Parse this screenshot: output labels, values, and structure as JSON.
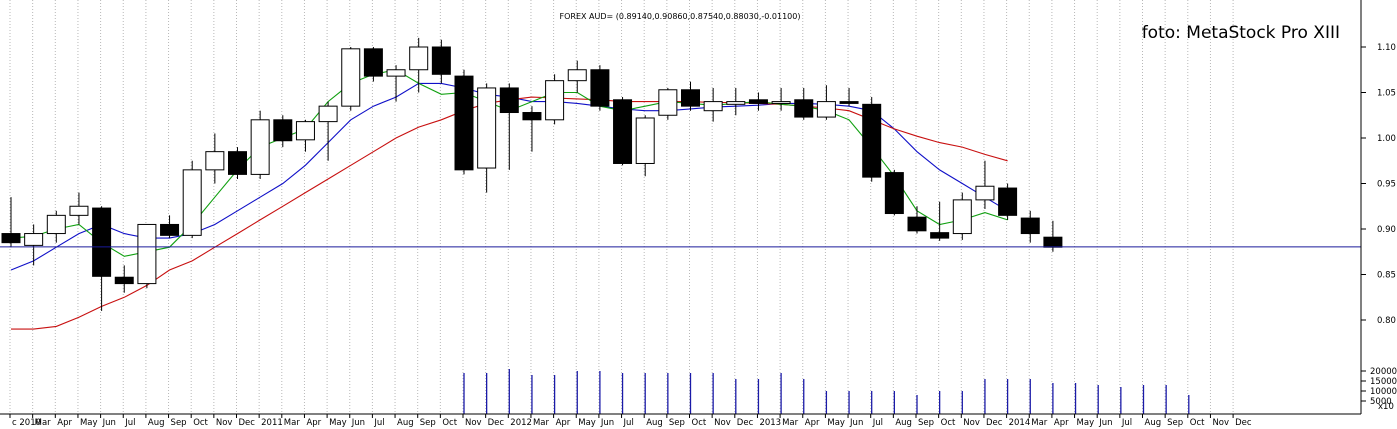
{
  "chart_data": {
    "type": "candlestick",
    "title": "FOREX AUD= (0.89140,0.90860,0.87540,0.88030,-0.01100)",
    "watermark": "foto: MetaStock Pro XIII",
    "price_axis": {
      "ticks": [
        0.8,
        0.85,
        0.9,
        0.95,
        1.0,
        1.05,
        1.1
      ],
      "labels": [
        "0.80",
        "0.85",
        "0.90",
        "0.95",
        "1.00",
        "1.05",
        "1.10"
      ],
      "ylim": [
        0.77,
        1.13
      ]
    },
    "volume_axis": {
      "ticks": [
        5000,
        10000,
        15000,
        20000
      ],
      "labels": [
        "5000",
        "10000",
        "15000",
        "20000"
      ],
      "top_label": "x10",
      "ylim": [
        0,
        22000
      ]
    },
    "x_labels": [
      "c 2010",
      "Mar",
      "Apr",
      "May",
      "Jun",
      "Jul",
      "Aug",
      "Sep",
      "Oct",
      "Nov",
      "Dec",
      "2011",
      "Mar",
      "Apr",
      "May",
      "Jun",
      "Jul",
      "Aug",
      "Sep",
      "Oct",
      "Nov",
      "Dec",
      "2012",
      "Mar",
      "Apr",
      "May",
      "Jun",
      "Jul",
      "Aug",
      "Sep",
      "Oct",
      "Nov",
      "Dec",
      "2013",
      "Mar",
      "Apr",
      "May",
      "Jun",
      "Jul",
      "Aug",
      "Sep",
      "Oct",
      "Nov",
      "Dec",
      "2014",
      "Mar",
      "Apr",
      "May",
      "Jun",
      "Jul",
      "Aug",
      "Sep",
      "Oct",
      "Nov",
      "Dec"
    ],
    "candles": [
      {
        "o": 0.895,
        "h": 0.935,
        "l": 0.88,
        "c": 0.885
      },
      {
        "o": 0.882,
        "h": 0.905,
        "l": 0.86,
        "c": 0.895
      },
      {
        "o": 0.895,
        "h": 0.92,
        "l": 0.885,
        "c": 0.915
      },
      {
        "o": 0.915,
        "h": 0.94,
        "l": 0.905,
        "c": 0.925
      },
      {
        "o": 0.923,
        "h": 0.925,
        "l": 0.81,
        "c": 0.848
      },
      {
        "o": 0.847,
        "h": 0.86,
        "l": 0.83,
        "c": 0.84
      },
      {
        "o": 0.84,
        "h": 0.905,
        "l": 0.835,
        "c": 0.905
      },
      {
        "o": 0.905,
        "h": 0.915,
        "l": 0.89,
        "c": 0.893
      },
      {
        "o": 0.893,
        "h": 0.975,
        "l": 0.89,
        "c": 0.965
      },
      {
        "o": 0.965,
        "h": 1.005,
        "l": 0.95,
        "c": 0.985
      },
      {
        "o": 0.985,
        "h": 0.99,
        "l": 0.955,
        "c": 0.96
      },
      {
        "o": 0.96,
        "h": 1.03,
        "l": 0.955,
        "c": 1.02
      },
      {
        "o": 1.02,
        "h": 1.025,
        "l": 0.99,
        "c": 0.997
      },
      {
        "o": 0.998,
        "h": 1.02,
        "l": 0.985,
        "c": 1.018
      },
      {
        "o": 1.018,
        "h": 1.04,
        "l": 0.975,
        "c": 1.035
      },
      {
        "o": 1.035,
        "h": 1.1,
        "l": 1.03,
        "c": 1.098
      },
      {
        "o": 1.098,
        "h": 1.1,
        "l": 1.062,
        "c": 1.068
      },
      {
        "o": 1.068,
        "h": 1.08,
        "l": 1.04,
        "c": 1.075
      },
      {
        "o": 1.075,
        "h": 1.11,
        "l": 1.05,
        "c": 1.1
      },
      {
        "o": 1.1,
        "h": 1.108,
        "l": 1.06,
        "c": 1.07
      },
      {
        "o": 1.068,
        "h": 1.075,
        "l": 0.96,
        "c": 0.965
      },
      {
        "o": 0.967,
        "h": 1.06,
        "l": 0.94,
        "c": 1.055
      },
      {
        "o": 1.055,
        "h": 1.06,
        "l": 0.965,
        "c": 1.028
      },
      {
        "o": 1.028,
        "h": 1.035,
        "l": 0.985,
        "c": 1.02
      },
      {
        "o": 1.02,
        "h": 1.07,
        "l": 1.015,
        "c": 1.063
      },
      {
        "o": 1.063,
        "h": 1.085,
        "l": 1.05,
        "c": 1.075
      },
      {
        "o": 1.075,
        "h": 1.08,
        "l": 1.03,
        "c": 1.035
      },
      {
        "o": 1.042,
        "h": 1.045,
        "l": 0.97,
        "c": 0.972
      },
      {
        "o": 0.972,
        "h": 1.025,
        "l": 0.958,
        "c": 1.022
      },
      {
        "o": 1.025,
        "h": 1.055,
        "l": 1.02,
        "c": 1.053
      },
      {
        "o": 1.053,
        "h": 1.062,
        "l": 1.03,
        "c": 1.035
      },
      {
        "o": 1.03,
        "h": 1.055,
        "l": 1.018,
        "c": 1.04
      },
      {
        "o": 1.037,
        "h": 1.055,
        "l": 1.025,
        "c": 1.04
      },
      {
        "o": 1.042,
        "h": 1.05,
        "l": 1.03,
        "c": 1.038
      },
      {
        "o": 1.038,
        "h": 1.055,
        "l": 1.03,
        "c": 1.04
      },
      {
        "o": 1.042,
        "h": 1.055,
        "l": 1.02,
        "c": 1.023
      },
      {
        "o": 1.023,
        "h": 1.058,
        "l": 1.02,
        "c": 1.04
      },
      {
        "o": 1.04,
        "h": 1.055,
        "l": 1.035,
        "c": 1.038
      },
      {
        "o": 1.037,
        "h": 1.045,
        "l": 0.952,
        "c": 0.957
      },
      {
        "o": 0.962,
        "h": 0.965,
        "l": 0.915,
        "c": 0.917
      },
      {
        "o": 0.913,
        "h": 0.925,
        "l": 0.895,
        "c": 0.898
      },
      {
        "o": 0.896,
        "h": 0.93,
        "l": 0.887,
        "c": 0.89
      },
      {
        "o": 0.895,
        "h": 0.94,
        "l": 0.888,
        "c": 0.932
      },
      {
        "o": 0.932,
        "h": 0.975,
        "l": 0.922,
        "c": 0.947
      },
      {
        "o": 0.945,
        "h": 0.95,
        "l": 0.91,
        "c": 0.915
      },
      {
        "o": 0.912,
        "h": 0.92,
        "l": 0.885,
        "c": 0.895
      },
      {
        "o": 0.891,
        "h": 0.909,
        "l": 0.875,
        "c": 0.88
      }
    ],
    "series": [
      {
        "color": "#1010c8",
        "values": [
          0.855,
          0.865,
          0.88,
          0.895,
          0.905,
          0.895,
          0.89,
          0.89,
          0.895,
          0.905,
          0.92,
          0.935,
          0.95,
          0.97,
          0.995,
          1.02,
          1.035,
          1.045,
          1.06,
          1.06,
          1.055,
          1.048,
          1.045,
          1.04,
          1.04,
          1.038,
          1.035,
          1.032,
          1.03,
          1.03,
          1.032,
          1.034,
          1.035,
          1.036,
          1.038,
          1.038,
          1.037,
          1.035,
          1.03,
          1.01,
          0.985,
          0.965,
          0.95,
          0.935,
          0.92
        ]
      },
      {
        "color": "#c81010",
        "values": [
          0.79,
          0.79,
          0.793,
          0.803,
          0.815,
          0.825,
          0.838,
          0.855,
          0.865,
          0.88,
          0.895,
          0.91,
          0.925,
          0.94,
          0.955,
          0.97,
          0.985,
          1.0,
          1.012,
          1.02,
          1.03,
          1.038,
          1.042,
          1.045,
          1.044,
          1.043,
          1.042,
          1.04,
          1.04,
          1.04,
          1.04,
          1.039,
          1.039,
          1.038,
          1.037,
          1.035,
          1.033,
          1.03,
          1.02,
          1.01,
          1.002,
          0.995,
          0.99,
          0.982,
          0.975
        ]
      },
      {
        "color": "#10a010",
        "values": [
          0.89,
          0.892,
          0.9,
          0.905,
          0.885,
          0.87,
          0.875,
          0.88,
          0.905,
          0.935,
          0.965,
          0.99,
          1.0,
          1.01,
          1.04,
          1.06,
          1.07,
          1.075,
          1.06,
          1.048,
          1.05,
          1.04,
          1.03,
          1.04,
          1.05,
          1.05,
          1.035,
          1.03,
          1.035,
          1.04,
          1.038,
          1.036,
          1.038,
          1.04,
          1.037,
          1.035,
          1.03,
          1.02,
          0.99,
          0.958,
          0.92,
          0.905,
          0.91,
          0.918,
          0.91
        ]
      }
    ],
    "hline": 0.8803,
    "volume": {
      "start_index": 20,
      "values": [
        19000,
        19000,
        21000,
        18000,
        18000,
        20000,
        20000,
        19000,
        19000,
        19000,
        19000,
        19000,
        16000,
        16000,
        19000,
        16000,
        10000,
        10000,
        10000,
        10000,
        8000,
        10000,
        10000,
        16000,
        16000,
        16000,
        14000,
        14000,
        13000,
        12000,
        13000,
        13000,
        8000
      ]
    }
  }
}
